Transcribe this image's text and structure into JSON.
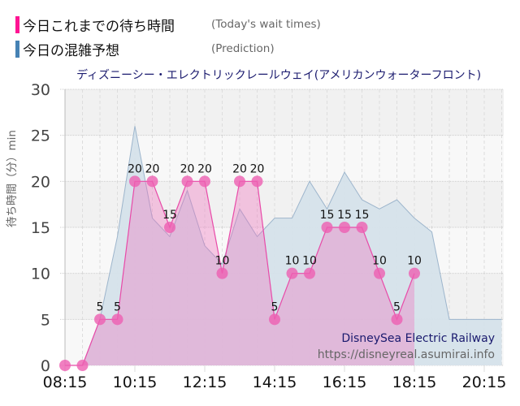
{
  "legend": {
    "actual": {
      "label_jp": "今日これまでの待ち時間",
      "label_en": "(Today's wait times)",
      "color": "#ff1493"
    },
    "prediction": {
      "label_jp": "今日の混雑予想",
      "label_en": "(Prediction)",
      "color": "#4682b4"
    }
  },
  "chart_title": "ディズニーシー・エレクトリックレールウェイ(アメリカンウォーターフロント)",
  "y_axis_label": "待ち時間（分）min",
  "watermark": {
    "line1": "DisneySea Electric Railway",
    "line2": "https://disneyreal.asumirai.info"
  },
  "colors": {
    "actual_line": "#e84aa8",
    "actual_marker": "#ee5fb2",
    "actual_fill": "#f7bde0",
    "prediction_line": "#9db5cc",
    "prediction_fill": "#d5e1ea",
    "title": "#1a1a6e"
  },
  "chart_data": {
    "type": "area",
    "title": "ディズニーシー・エレクトリックレールウェイ(アメリカンウォーターフロント)",
    "xlabel": "",
    "ylabel": "待ち時間（分）min",
    "ylim": [
      0,
      30
    ],
    "yticks": [
      0,
      5,
      10,
      15,
      20,
      25,
      30
    ],
    "xticks": [
      "08:15",
      "10:15",
      "12:15",
      "14:15",
      "16:15",
      "18:15",
      "20:15"
    ],
    "grid": true,
    "legend_position": "top-left",
    "series": [
      {
        "name": "今日これまでの待ち時間 (Today's wait times)",
        "x": [
          "08:15",
          "08:45",
          "09:15",
          "09:45",
          "10:15",
          "10:45",
          "11:15",
          "11:45",
          "12:15",
          "12:45",
          "13:15",
          "13:45",
          "14:15",
          "14:45",
          "15:15",
          "15:45",
          "16:15",
          "16:45",
          "17:15",
          "17:45",
          "18:15"
        ],
        "values": [
          0,
          0,
          5,
          5,
          20,
          20,
          15,
          20,
          20,
          10,
          20,
          20,
          5,
          10,
          10,
          15,
          15,
          15,
          10,
          5,
          10
        ]
      },
      {
        "name": "今日の混雑予想 (Prediction)",
        "x": [
          "08:15",
          "08:45",
          "09:15",
          "09:45",
          "10:15",
          "10:45",
          "11:15",
          "11:45",
          "12:15",
          "12:45",
          "13:15",
          "13:45",
          "14:15",
          "14:45",
          "15:15",
          "15:45",
          "16:15",
          "16:45",
          "17:15",
          "17:45",
          "18:15",
          "18:45",
          "19:15",
          "19:45",
          "20:15",
          "20:45"
        ],
        "values": [
          0,
          0,
          5,
          14,
          26,
          16,
          14,
          19,
          13,
          11,
          17,
          14,
          16,
          16,
          20,
          17,
          21,
          18,
          17,
          18,
          16,
          14.5,
          5,
          5,
          5,
          5
        ]
      }
    ]
  }
}
